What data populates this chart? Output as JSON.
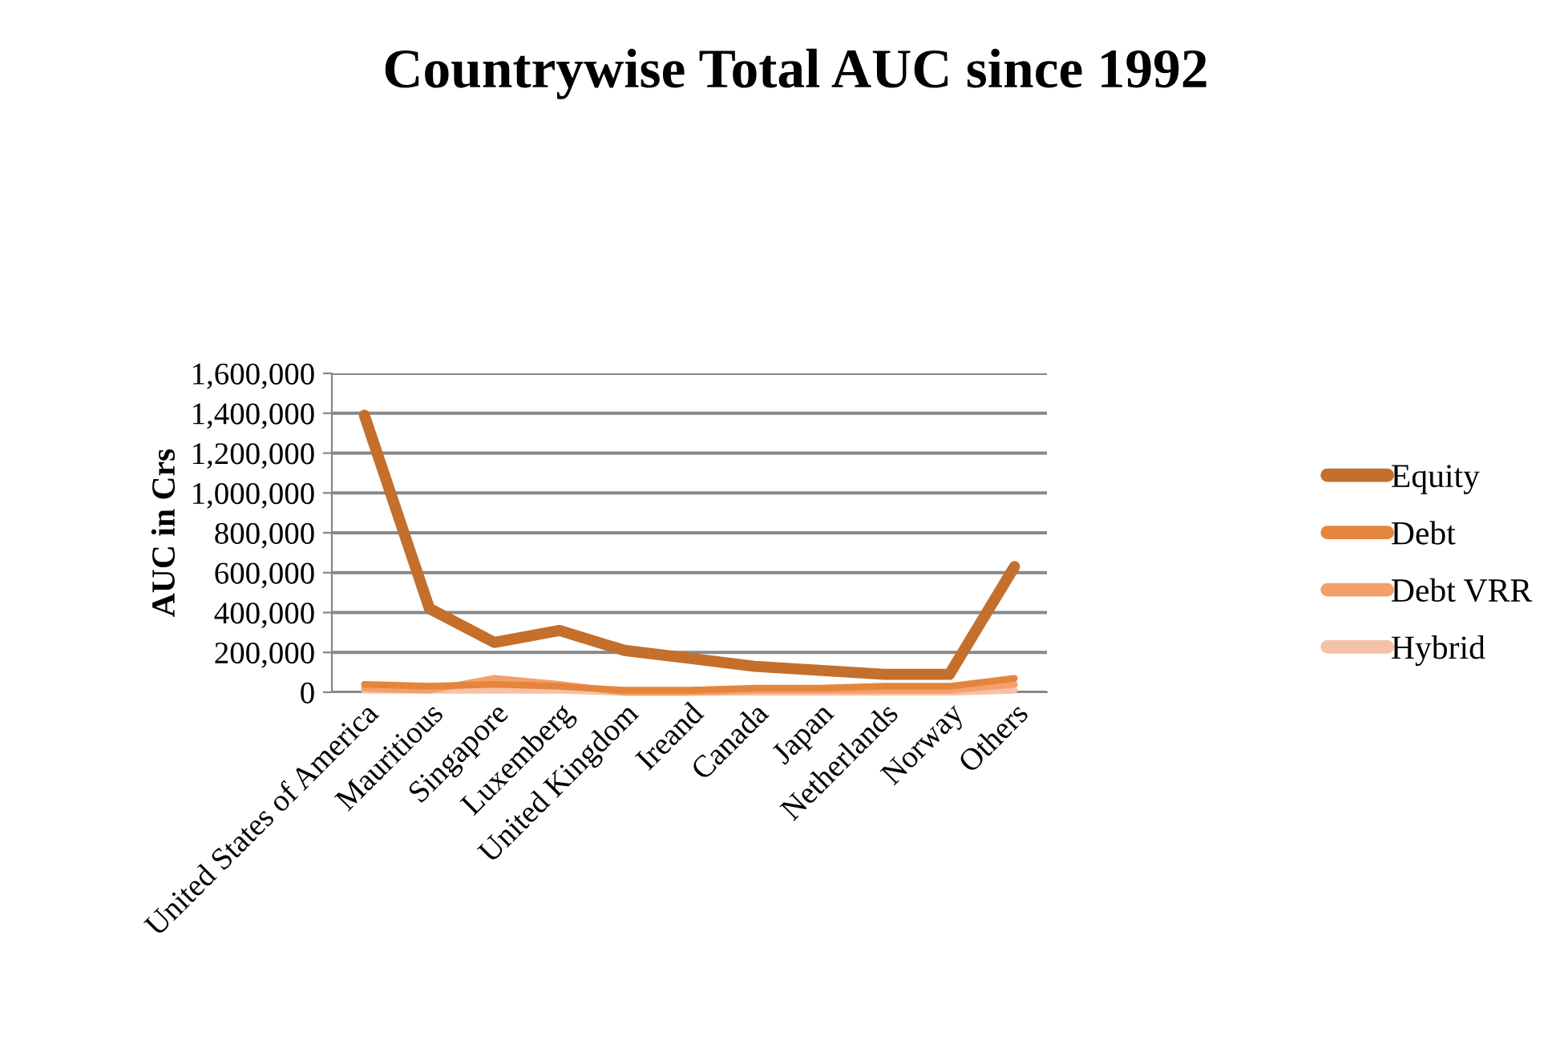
{
  "chart_data": {
    "type": "line",
    "title": "Countrywise Total AUC since 1992",
    "ylabel": "AUC in Crs",
    "categories": [
      "United States of America",
      "Mauritious",
      "Singapore",
      "Luxemberg",
      "United Kingdom",
      "Ireand",
      "Canada",
      "Japan",
      "Netherlands",
      "Norway",
      "Others"
    ],
    "series": [
      {
        "name": "Equity",
        "color": "#c46f2c",
        "values": [
          1390000,
          420000,
          250000,
          310000,
          210000,
          170000,
          130000,
          110000,
          90000,
          90000,
          630000
        ]
      },
      {
        "name": "Debt",
        "color": "#e5853c",
        "values": [
          40000,
          30000,
          40000,
          30000,
          10000,
          10000,
          20000,
          20000,
          30000,
          30000,
          70000
        ]
      },
      {
        "name": "Debt VRR",
        "color": "#f3a06c",
        "values": [
          20000,
          10000,
          70000,
          40000,
          0,
          0,
          10000,
          10000,
          10000,
          10000,
          40000
        ]
      },
      {
        "name": "Hybrid",
        "color": "#f6c2a6",
        "values": [
          10000,
          10000,
          10000,
          10000,
          0,
          0,
          0,
          0,
          0,
          0,
          10000
        ]
      }
    ],
    "ylim": [
      0,
      1600000
    ],
    "yticks": [
      {
        "value": 0,
        "label": "0"
      },
      {
        "value": 200000,
        "label": "200,000"
      },
      {
        "value": 400000,
        "label": "400,000"
      },
      {
        "value": 600000,
        "label": "600,000"
      },
      {
        "value": 800000,
        "label": "800,000"
      },
      {
        "value": 1000000,
        "label": "1,000,000"
      },
      {
        "value": 1200000,
        "label": "1,200,000"
      },
      {
        "value": 1400000,
        "label": "1,400,000"
      },
      {
        "value": 1600000,
        "label": "1,600,000"
      }
    ],
    "grid": "y",
    "legend": "right",
    "marker": "none",
    "line_style": "solid"
  }
}
